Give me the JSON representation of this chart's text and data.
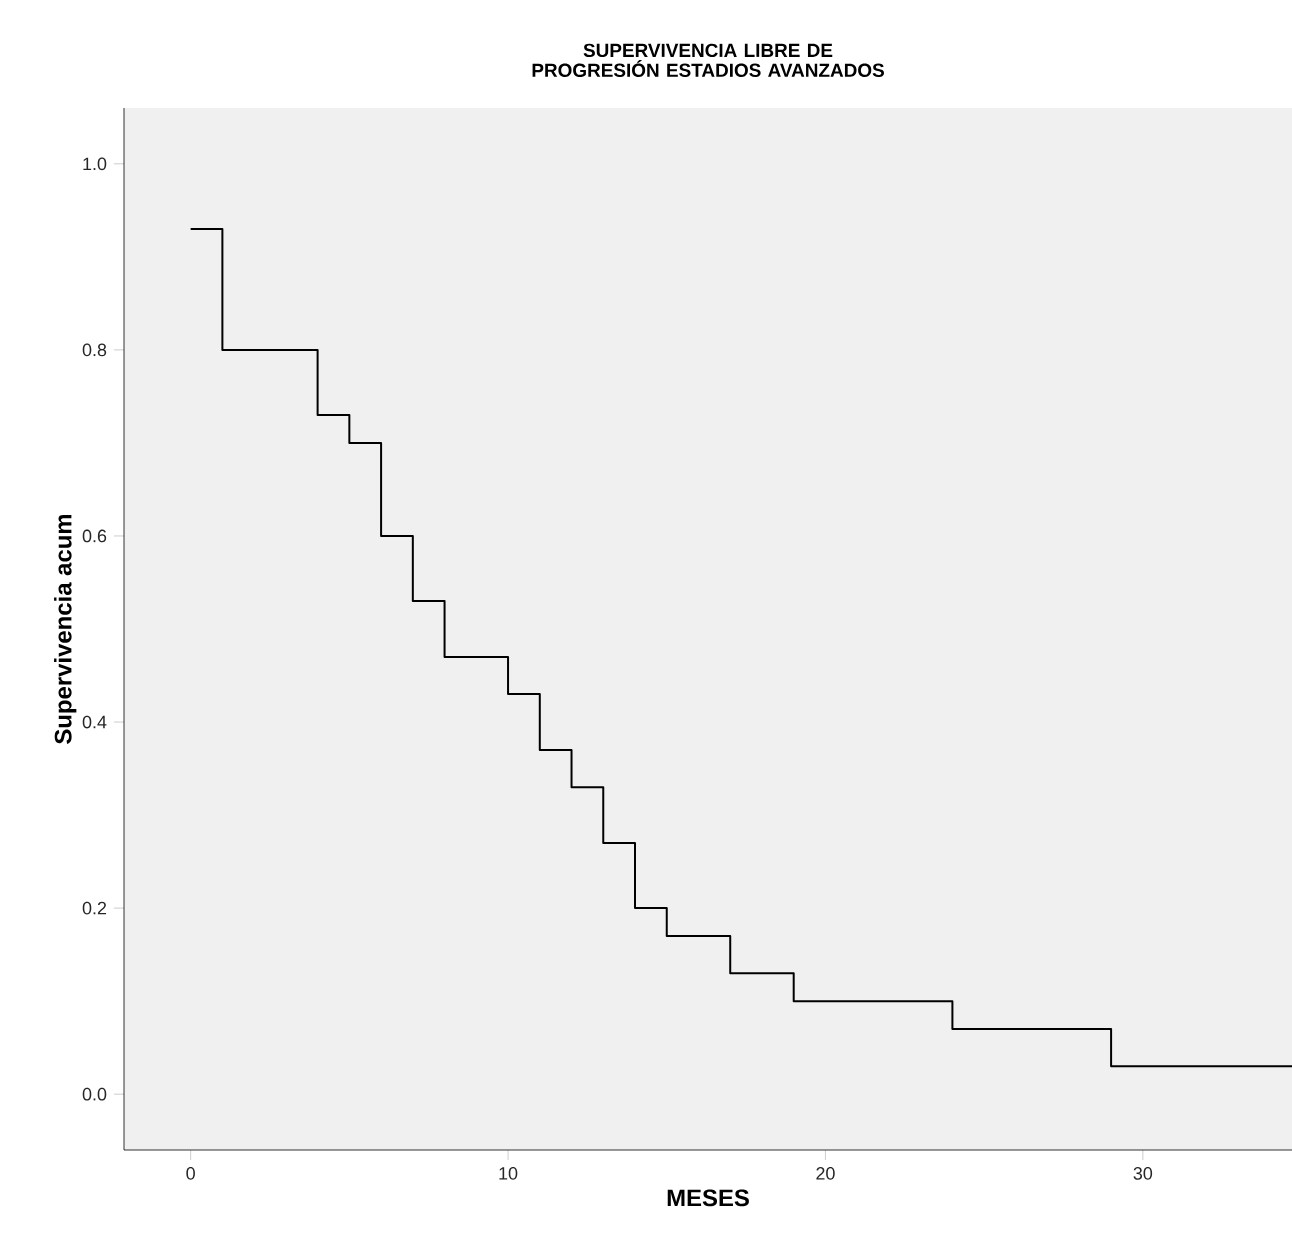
{
  "chart_data": {
    "type": "step",
    "title": "SUPERVIVENCIA LIBRE DE PROGRESIÓN ESTADIOS AVANZADOS",
    "xlabel": "MESES",
    "ylabel": "Supervivencia acum",
    "x": [
      0,
      1,
      4,
      5,
      6,
      7,
      8,
      10,
      11,
      12,
      13,
      14,
      15,
      17,
      19,
      24,
      29,
      34.7
    ],
    "values": [
      0.93,
      0.8,
      0.73,
      0.7,
      0.6,
      0.53,
      0.47,
      0.43,
      0.37,
      0.33,
      0.27,
      0.2,
      0.17,
      0.13,
      0.1,
      0.07,
      0.03,
      0.03
    ],
    "color": "#000000",
    "xlim": [
      -2.1,
      34.7
    ],
    "ylim": [
      -0.06,
      1.06
    ],
    "xticks": [
      0,
      10,
      20,
      30
    ],
    "yticks": [
      {
        "value": 0,
        "label": "0.0"
      },
      {
        "value": 0.2,
        "label": "0.2"
      },
      {
        "value": 0.4,
        "label": "0.4"
      },
      {
        "value": 0.6,
        "label": "0.6"
      },
      {
        "value": 0.8,
        "label": "0.8"
      },
      {
        "value": 1,
        "label": "1.0"
      }
    ],
    "grid": false
  }
}
